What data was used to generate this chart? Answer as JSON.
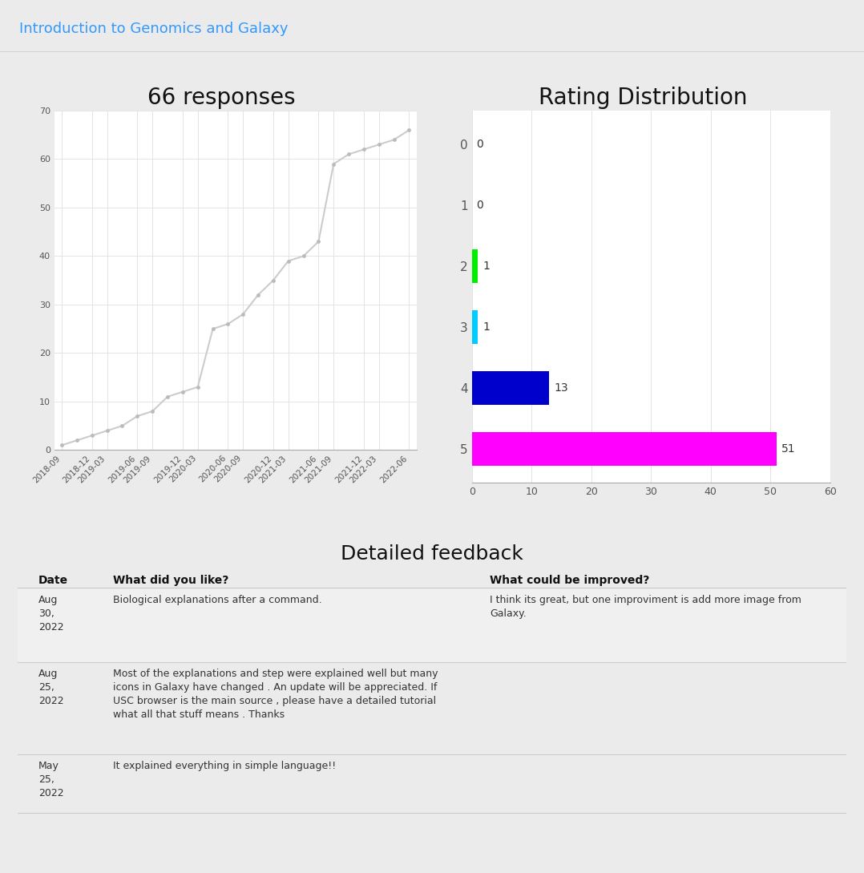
{
  "page_title": "Introduction to Genomics and Galaxy",
  "page_title_color": "#3399ff",
  "chart1_title": "66 responses",
  "line_color": "#cccccc",
  "marker_color": "#bbbbbb",
  "time_labels": [
    "2018-09",
    "2018-12",
    "2019-03",
    "2019-06",
    "2019-09",
    "2019-12",
    "2020-03",
    "2020-06",
    "2020-09",
    "2020-12",
    "2021-03",
    "2021-06",
    "2021-09",
    "2021-12",
    "2022-03",
    "2022-06"
  ],
  "cumulative_values": [
    1,
    2,
    3,
    4,
    5,
    7,
    8,
    11,
    12,
    13,
    25,
    26,
    28,
    32,
    35,
    39,
    40,
    43,
    59,
    61,
    62,
    63,
    64,
    66
  ],
  "chart2_title": "Rating Distribution",
  "rating_labels": [
    "0",
    "1",
    "2",
    "3",
    "4",
    "5"
  ],
  "rating_values": [
    0,
    0,
    1,
    1,
    13,
    51
  ],
  "rating_colors": [
    "#cccccc",
    "#cccccc",
    "#00ee00",
    "#00ccff",
    "#0000cc",
    "#ff00ff"
  ],
  "feedback_title": "Detailed feedback",
  "table_headers": [
    "Date",
    "What did you like?",
    "What could be improved?"
  ],
  "table_rows": [
    [
      "Aug\n30,\n2022",
      "Biological explanations after a command.",
      "I think its great, but one improviment is add more image from\nGalaxy."
    ],
    [
      "Aug\n25,\n2022",
      "Most of the explanations and step were explained well but many\nicons in Galaxy have changed . An update will be appreciated. If\nUSC browser is the main source , please have a detailed tutorial\nwhat all that stuff means . Thanks",
      ""
    ],
    [
      "May\n25,\n2022",
      "It explained everything in simple language!!",
      ""
    ]
  ],
  "row_shaded": [
    true,
    false,
    false
  ],
  "bg_color": "#ebebeb",
  "panel_bg": "#ffffff",
  "header_bg": "#f2f2f2"
}
